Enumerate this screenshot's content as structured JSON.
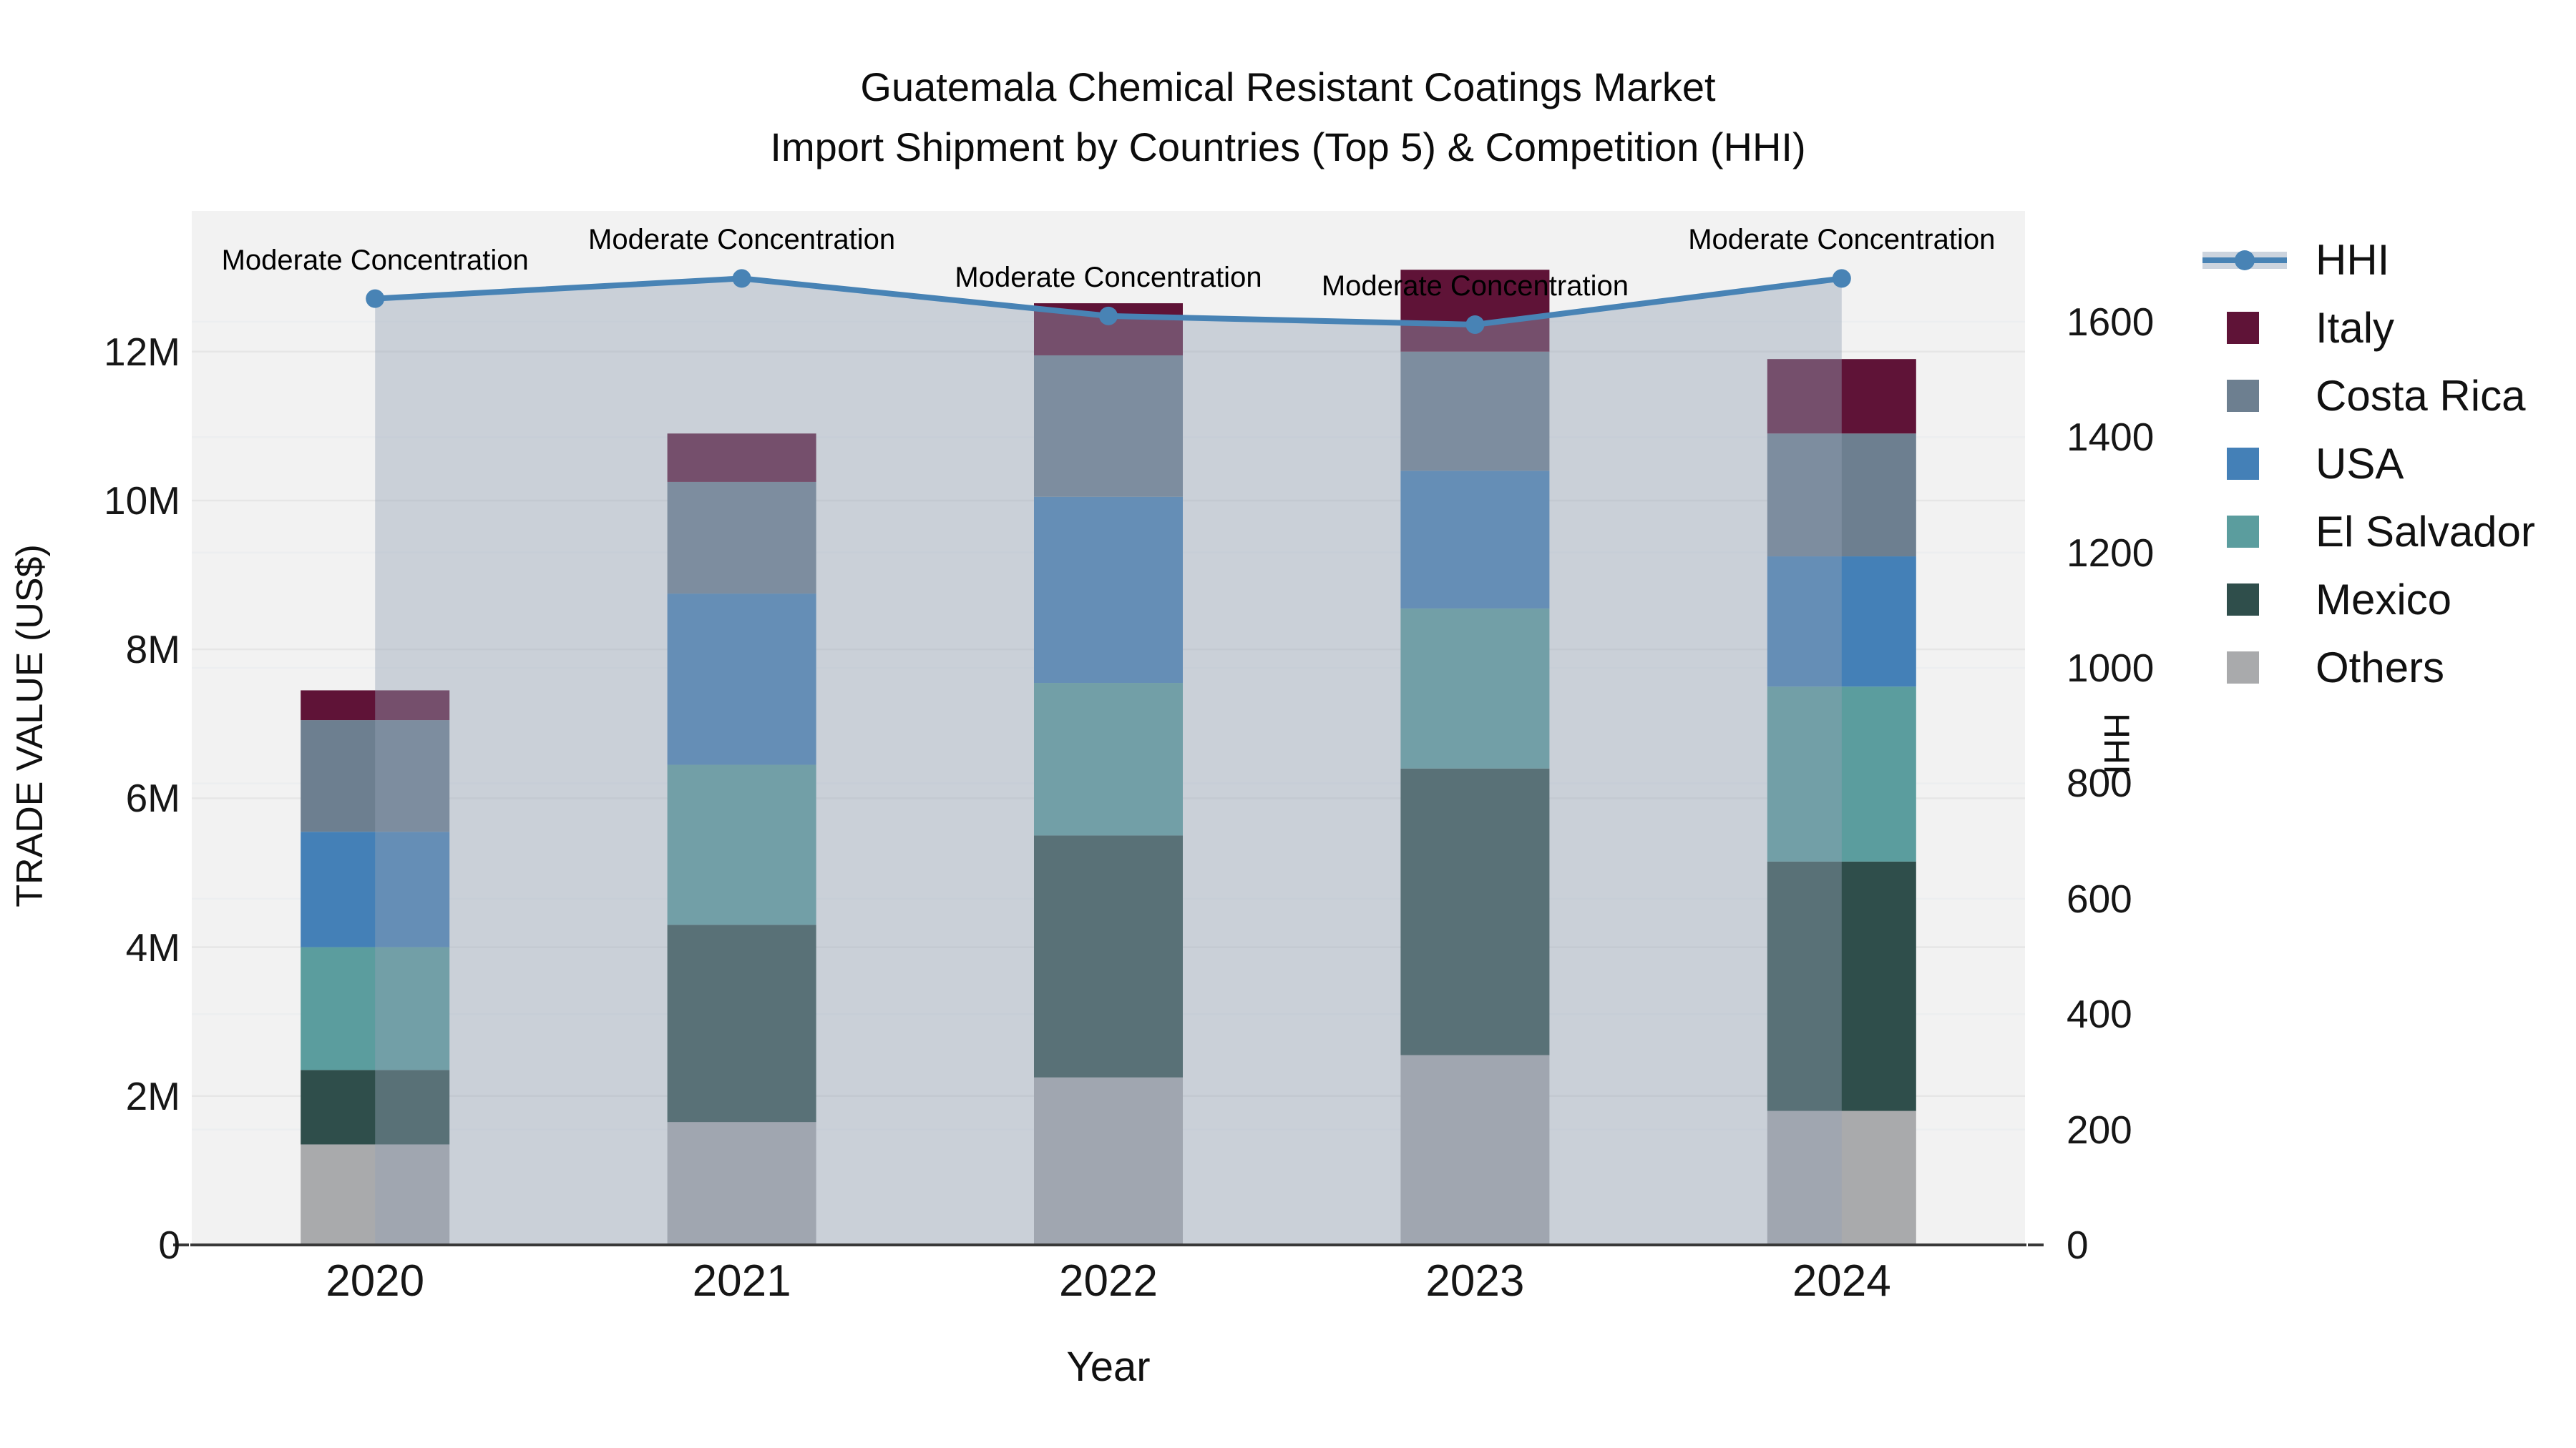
{
  "title": {
    "line1": "Guatemala Chemical Resistant Coatings Market",
    "line2": "Import Shipment by Countries (Top 5) & Competition (HHI)"
  },
  "chart_data": {
    "type": "bar",
    "subtype": "stacked-bars-with-overlay-line",
    "categories": [
      "2020",
      "2021",
      "2022",
      "2023",
      "2024"
    ],
    "values_unit": "US$ millions",
    "series": [
      {
        "name": "Others",
        "color": "#a9aaac",
        "values": [
          1.35,
          1.65,
          2.25,
          2.55,
          1.8
        ]
      },
      {
        "name": "Mexico",
        "color": "#2f4e4b",
        "values": [
          1.0,
          2.65,
          3.25,
          3.85,
          3.35
        ]
      },
      {
        "name": "El Salvador",
        "color": "#5b9d9e",
        "values": [
          1.65,
          2.15,
          2.05,
          2.15,
          2.35
        ]
      },
      {
        "name": "USA",
        "color": "#4480b7",
        "values": [
          1.55,
          2.3,
          2.5,
          1.85,
          1.75
        ]
      },
      {
        "name": "Costa Rica",
        "color": "#6d7f90",
        "values": [
          1.5,
          1.5,
          1.9,
          1.6,
          1.65
        ]
      },
      {
        "name": "Italy",
        "color": "#5f1337",
        "values": [
          0.4,
          0.65,
          0.7,
          1.1,
          1.0
        ]
      }
    ],
    "totals": [
      7.45,
      10.9,
      12.65,
      13.1,
      11.9
    ],
    "line_series": {
      "name": "HHI",
      "axis": "right",
      "color": "#4883b5",
      "area_fill": "rgba(147,162,181,0.42)",
      "values": [
        1640,
        1675,
        1610,
        1595,
        1675
      ]
    },
    "annotations": [
      {
        "category": "2020",
        "text": "Moderate Concentration"
      },
      {
        "category": "2021",
        "text": "Moderate Concentration"
      },
      {
        "category": "2022",
        "text": "Moderate Concentration"
      },
      {
        "category": "2023",
        "text": "Moderate Concentration"
      },
      {
        "category": "2024",
        "text": "Moderate Concentration"
      }
    ],
    "xlabel": "Year",
    "left_axis": {
      "label": "TRADE VALUE (US$)",
      "max": 13.89,
      "ticks": [
        {
          "label": "0",
          "value": 0
        },
        {
          "label": "2M",
          "value": 2
        },
        {
          "label": "4M",
          "value": 4
        },
        {
          "label": "6M",
          "value": 6
        },
        {
          "label": "8M",
          "value": 8
        },
        {
          "label": "10M",
          "value": 10
        },
        {
          "label": "12M",
          "value": 12
        }
      ]
    },
    "right_axis": {
      "label": "HHI",
      "max": 1792,
      "ticks": [
        {
          "label": "0",
          "value": 0
        },
        {
          "label": "200",
          "value": 200
        },
        {
          "label": "400",
          "value": 400
        },
        {
          "label": "600",
          "value": 600
        },
        {
          "label": "800",
          "value": 800
        },
        {
          "label": "1000",
          "value": 1000
        },
        {
          "label": "1200",
          "value": 1200
        },
        {
          "label": "1400",
          "value": 1400
        },
        {
          "label": "1600",
          "value": 1600
        }
      ]
    },
    "legend": [
      {
        "label": "HHI",
        "kind": "line",
        "color": "#4883b5"
      },
      {
        "label": "Italy",
        "kind": "square",
        "color": "#5f1337"
      },
      {
        "label": "Costa Rica",
        "kind": "square",
        "color": "#6d7f90"
      },
      {
        "label": "USA",
        "kind": "square",
        "color": "#4480b7"
      },
      {
        "label": "El Salvador",
        "kind": "square",
        "color": "#5b9d9e"
      },
      {
        "label": "Mexico",
        "kind": "square",
        "color": "#2f4e4b"
      },
      {
        "label": "Others",
        "kind": "square",
        "color": "#a9aaac"
      }
    ],
    "layout_hints": {
      "plot_background": "#f2f2f2",
      "gridlines": "on",
      "legend_position": "top-right"
    }
  }
}
